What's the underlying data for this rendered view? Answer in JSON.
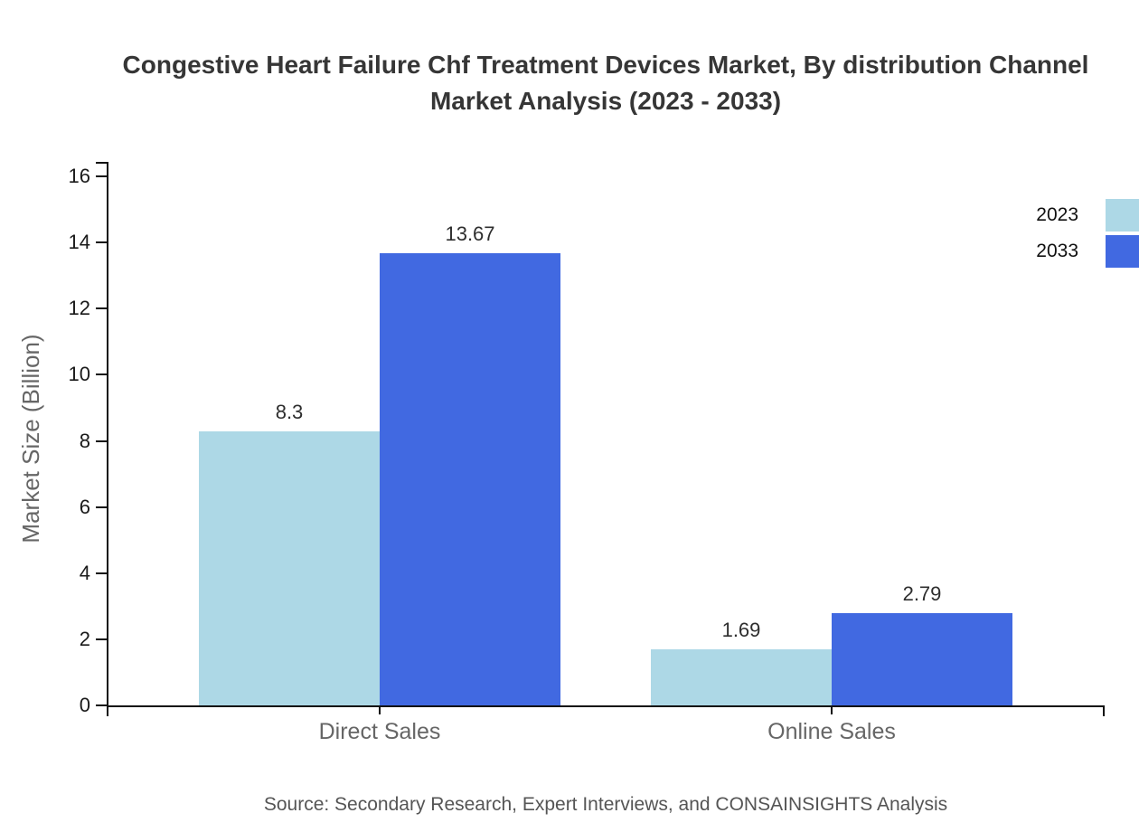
{
  "title": {
    "line1": "Congestive Heart Failure Chf Treatment Devices Market, By distribution Channel",
    "line2": "Market Analysis (2023 - 2033)"
  },
  "source": "Source: Secondary Research, Expert Interviews, and CONSAINSIGHTS Analysis",
  "legend": {
    "position": "top-right",
    "items": [
      {
        "label": "2023",
        "color": "#ADD8E6"
      },
      {
        "label": "2033",
        "color": "#4169E1"
      }
    ]
  },
  "chart_data": {
    "type": "bar",
    "categories": [
      "Direct Sales",
      "Online Sales"
    ],
    "series": [
      {
        "name": "2023",
        "color": "#ADD8E6",
        "values": [
          8.3,
          1.69
        ]
      },
      {
        "name": "2033",
        "color": "#4169E1",
        "values": [
          13.67,
          2.79
        ]
      }
    ],
    "value_labels": [
      [
        "8.3",
        "13.67"
      ],
      [
        "1.69",
        "2.79"
      ]
    ],
    "title": "Congestive Heart Failure Chf Treatment Devices Market, By distribution Channel Market Analysis (2023 - 2033)",
    "xlabel": "",
    "ylabel": "Market Size (Billion)",
    "ylim": [
      0,
      16
    ],
    "yticks": [
      0,
      2,
      4,
      6,
      8,
      10,
      12,
      14,
      16
    ],
    "grid": false,
    "legend_position": "top-right"
  },
  "colors": {
    "series_2023": "#ADD8E6",
    "series_2033": "#4169E1",
    "axis": "#111111",
    "tick_label": "#1a1a1a",
    "category_label": "#666666",
    "axis_title": "#666666",
    "title_text": "#363636",
    "source_text": "#555555",
    "background": "#ffffff"
  }
}
